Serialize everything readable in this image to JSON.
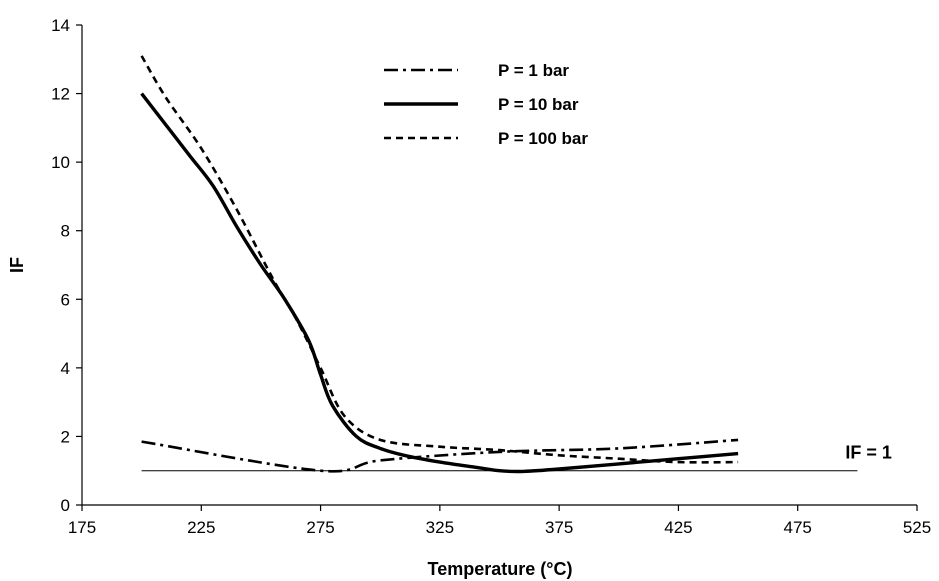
{
  "chart_data": {
    "type": "line",
    "title": "",
    "xlabel": "Temperature (°C)",
    "ylabel": "IF",
    "xlim": [
      175,
      525
    ],
    "ylim": [
      0,
      14
    ],
    "x_ticks": [
      175,
      225,
      275,
      325,
      375,
      425,
      475,
      525
    ],
    "y_ticks": [
      0,
      2,
      4,
      6,
      8,
      10,
      12,
      14
    ],
    "grid": false,
    "legend_position": "top-center",
    "series": [
      {
        "name": "P = 1 bar",
        "style": "dash-dot",
        "color": "#000000",
        "points": [
          [
            200,
            1.85
          ],
          [
            275,
            1.0
          ],
          [
            300,
            1.3
          ],
          [
            350,
            1.55
          ],
          [
            400,
            1.65
          ],
          [
            450,
            1.9
          ]
        ]
      },
      {
        "name": "P = 10 bar",
        "style": "solid",
        "color": "#000000",
        "points": [
          [
            200,
            12.0
          ],
          [
            210,
            11.1
          ],
          [
            220,
            10.2
          ],
          [
            230,
            9.3
          ],
          [
            240,
            8.1
          ],
          [
            250,
            7.0
          ],
          [
            260,
            6.0
          ],
          [
            270,
            4.8
          ],
          [
            275,
            3.8
          ],
          [
            280,
            2.9
          ],
          [
            290,
            2.0
          ],
          [
            300,
            1.65
          ],
          [
            310,
            1.45
          ],
          [
            325,
            1.25
          ],
          [
            340,
            1.1
          ],
          [
            350,
            1.0
          ],
          [
            360,
            0.98
          ],
          [
            375,
            1.05
          ],
          [
            400,
            1.2
          ],
          [
            425,
            1.35
          ],
          [
            450,
            1.5
          ]
        ]
      },
      {
        "name": "P = 100 bar",
        "style": "dashed",
        "color": "#000000",
        "points": [
          [
            200,
            13.1
          ],
          [
            210,
            11.9
          ],
          [
            225,
            10.4
          ],
          [
            240,
            8.6
          ],
          [
            255,
            6.6
          ],
          [
            265,
            5.4
          ],
          [
            275,
            4.0
          ],
          [
            285,
            2.6
          ],
          [
            300,
            1.9
          ],
          [
            325,
            1.7
          ],
          [
            350,
            1.6
          ],
          [
            375,
            1.45
          ],
          [
            400,
            1.35
          ],
          [
            425,
            1.25
          ],
          [
            450,
            1.25
          ]
        ]
      },
      {
        "name": "IF = 1",
        "style": "thin",
        "color": "#000000",
        "points": [
          [
            200,
            1.0
          ],
          [
            500,
            1.0
          ]
        ]
      }
    ],
    "annotations": [
      {
        "text": "IF = 1",
        "x": 500,
        "y": 1.0
      }
    ]
  }
}
